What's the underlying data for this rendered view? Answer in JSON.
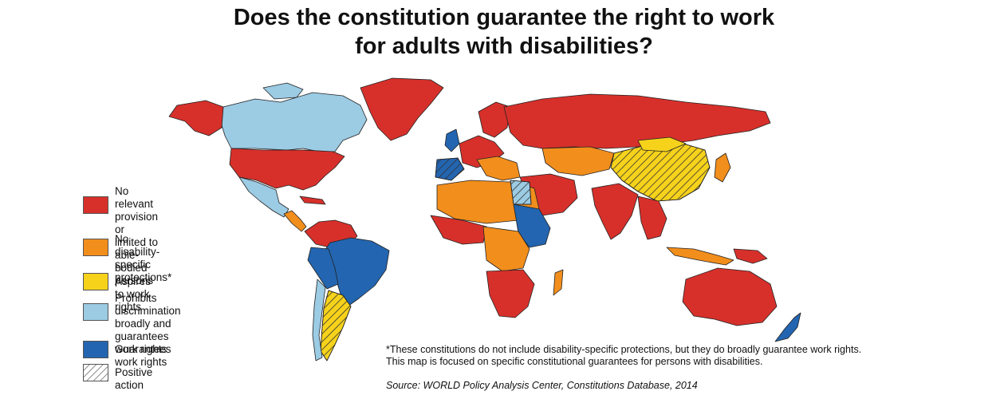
{
  "title": {
    "line1": "Does the constitution guarantee the right to work",
    "line2": "for adults with disabilities?"
  },
  "colors": {
    "no_provision": "#d7302b",
    "no_disability_specific": "#f28e1c",
    "aspires": "#f6d21b",
    "prohibits_discrimination": "#9ccbe4",
    "guarantees": "#2365b0",
    "positive_action": "#ffffff",
    "border": "#222222"
  },
  "legend": [
    {
      "key": "no_provision",
      "label": "No relevant provision\nor limited to able-bodied\npersons",
      "color": "#d7302b",
      "hatched": false
    },
    {
      "key": "no_disability_specific",
      "label": "No disability-specific\nprotections*",
      "color": "#f28e1c",
      "hatched": false
    },
    {
      "key": "aspires",
      "label": "Aspires to work rights",
      "color": "#f6d21b",
      "hatched": false
    },
    {
      "key": "prohibits_discrimination",
      "label": "Prohibits discrimination\nbroadly and guarantees\nwork rights",
      "color": "#9ccbe4",
      "hatched": false
    },
    {
      "key": "guarantees",
      "label": "Guarantees work rights",
      "color": "#2365b0",
      "hatched": false
    },
    {
      "key": "positive_action",
      "label": "Positive action",
      "color": "#ffffff",
      "hatched": true
    }
  ],
  "note": {
    "line1": "*These constitutions do not include disability-specific protections, but they do broadly guarantee work rights.",
    "line2": "This map is focused on specific constitutional guarantees for persons with disabilities."
  },
  "source": "Source: WORLD Policy Analysis Center, Constitutions Database, 2014"
}
